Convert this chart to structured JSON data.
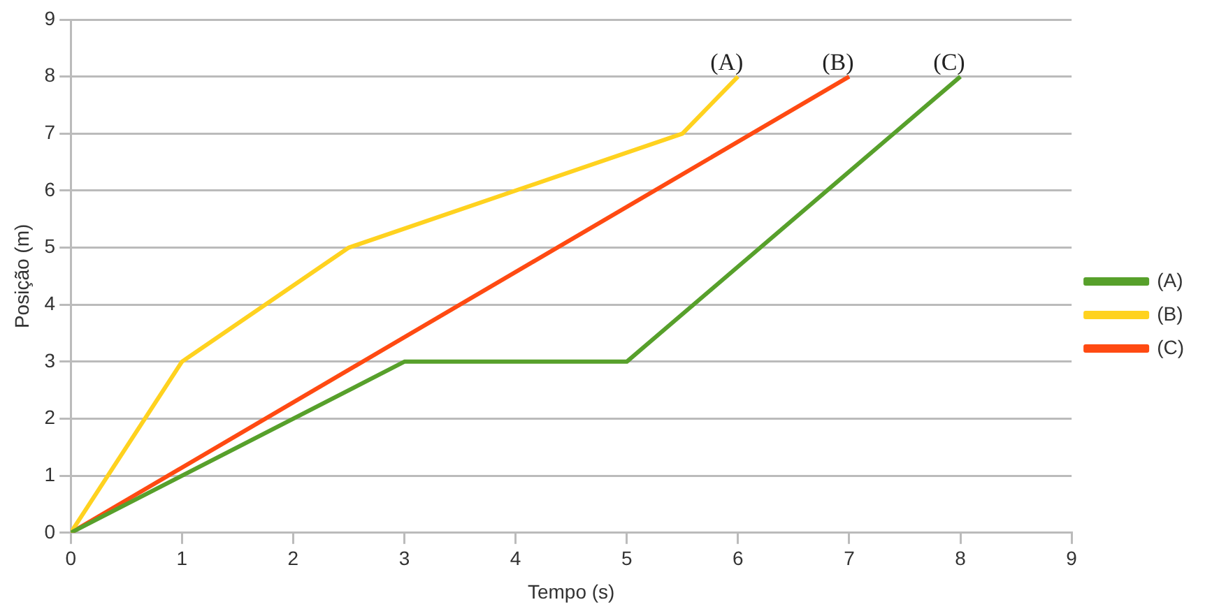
{
  "chart_data": {
    "type": "line",
    "xlabel": "Tempo (s)",
    "ylabel": "Posição (m)",
    "xlim": [
      0,
      9
    ],
    "xticks": [
      0,
      1,
      2,
      3,
      4,
      5,
      6,
      7,
      8,
      9
    ],
    "ylim": [
      0,
      9
    ],
    "yticks": [
      0,
      1,
      2,
      3,
      4,
      5,
      6,
      7,
      8,
      9
    ],
    "grid": "y",
    "legend": "right",
    "marker": "none",
    "line_style": "solid",
    "series": [
      {
        "name": "(A)",
        "color": "#57a02b",
        "x": [
          0,
          3,
          5,
          8
        ],
        "values": [
          0,
          3,
          3,
          8
        ]
      },
      {
        "name": "(B)",
        "color": "#ffd21f",
        "x": [
          0,
          1,
          2.5,
          5.5,
          6
        ],
        "values": [
          0,
          3,
          5,
          7,
          8
        ]
      },
      {
        "name": "(C)",
        "color": "#ff4a12",
        "x": [
          0,
          7
        ],
        "values": [
          0,
          8
        ]
      }
    ],
    "annotations": [
      {
        "text": "(A)",
        "x": 6,
        "y": 8
      },
      {
        "text": "(B)",
        "x": 7,
        "y": 8
      },
      {
        "text": "(C)",
        "x": 8,
        "y": 8
      }
    ]
  }
}
